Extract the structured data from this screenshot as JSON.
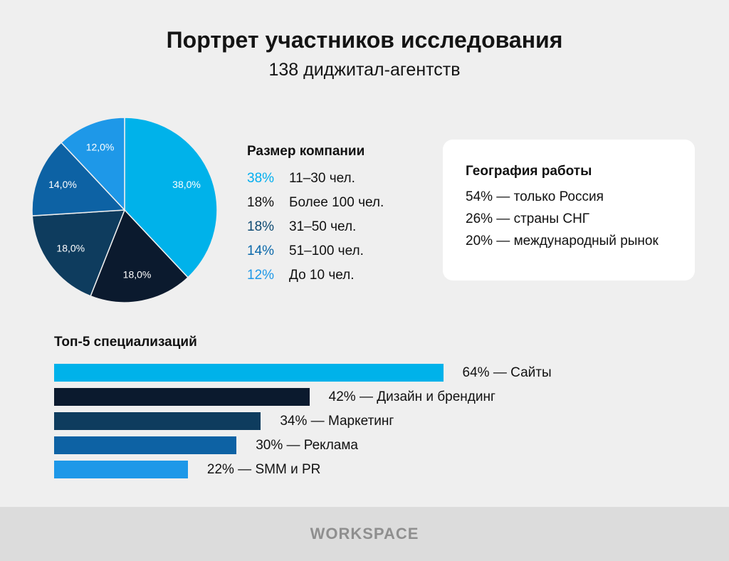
{
  "header": {
    "title": "Портрет участников исследования",
    "subtitle": "138 диджитал-агентств"
  },
  "company_size": {
    "title": "Размер компании",
    "items": [
      {
        "pct": "38%",
        "label": "11–30 чел.",
        "color": "#00aeef"
      },
      {
        "pct": "18%",
        "label": "Более 100 чел.",
        "color": "#111111"
      },
      {
        "pct": "18%",
        "label": "31–50 чел.",
        "color": "#0e4a72"
      },
      {
        "pct": "14%",
        "label": "51–100 чел.",
        "color": "#0a68aa"
      },
      {
        "pct": "12%",
        "label": "До 10 чел.",
        "color": "#1e98e8"
      }
    ]
  },
  "geography": {
    "title": "География работы",
    "items": [
      "54% — только Россия",
      "26% — страны СНГ",
      "20% — международный рынок"
    ]
  },
  "specializations": {
    "title": "Топ-5 специализаций"
  },
  "brand": {
    "name": "WORKSPACE"
  },
  "chart_data": [
    {
      "type": "pie",
      "title": "Размер компании",
      "categories": [
        "11–30 чел.",
        "Более 100 чел.",
        "31–50 чел.",
        "51–100 чел.",
        "До 10 чел."
      ],
      "values": [
        38.0,
        18.0,
        18.0,
        14.0,
        12.0
      ],
      "value_labels": [
        "38,0%",
        "18,0%",
        "18,0%",
        "14,0%",
        "12,0%"
      ],
      "colors": [
        "#00b2ea",
        "#0b1a2e",
        "#0e3c5e",
        "#0d62a4",
        "#1e98e8"
      ]
    },
    {
      "type": "bar",
      "orientation": "horizontal",
      "title": "Топ-5 специализаций",
      "categories": [
        "Сайты",
        "Дизайн и брендинг",
        "Маркетинг",
        "Реклама",
        "SMM и PR"
      ],
      "values": [
        64,
        42,
        34,
        30,
        22
      ],
      "labels": [
        "64% — Сайты",
        "42% — Дизайн и брендинг",
        "34% — Маркетинг",
        "30% — Реклама",
        "22% — SMM и PR"
      ],
      "colors": [
        "#00b2ea",
        "#0b1a2e",
        "#0e3c5e",
        "#0d62a4",
        "#1e98e8"
      ],
      "xlim": [
        0,
        100
      ]
    }
  ]
}
